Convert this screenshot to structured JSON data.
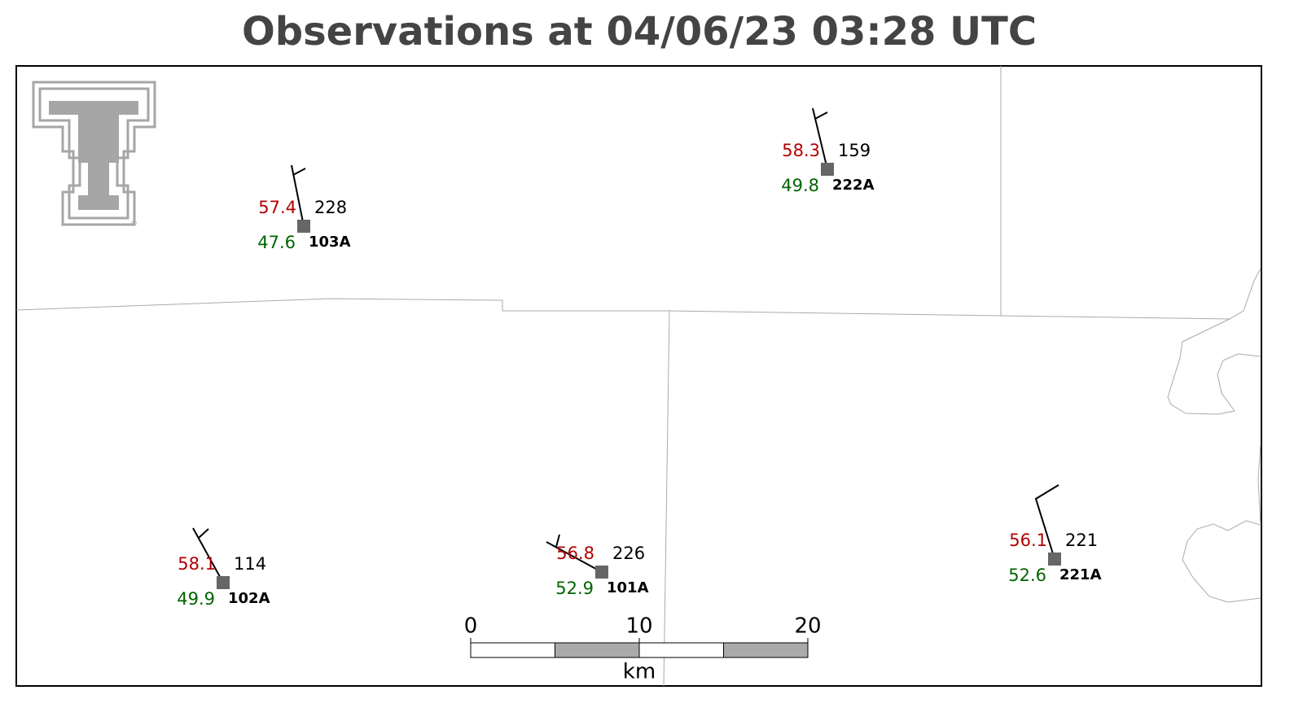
{
  "title": "Observations at 04/06/23 03:28 UTC",
  "stations": [
    {
      "id": "103A",
      "temp": 57.4,
      "dewpoint": 47.6,
      "value": 228
    },
    {
      "id": "222A",
      "temp": 58.3,
      "dewpoint": 49.8,
      "value": 159
    },
    {
      "id": "102A",
      "temp": 58.1,
      "dewpoint": 49.9,
      "value": 114
    },
    {
      "id": "101A",
      "temp": 56.8,
      "dewpoint": 52.9,
      "value": 226
    },
    {
      "id": "221A",
      "temp": 56.1,
      "dewpoint": 52.6,
      "value": 221
    }
  ],
  "scale_bar": {
    "labels": [
      0,
      10,
      20
    ],
    "unit": "km"
  }
}
